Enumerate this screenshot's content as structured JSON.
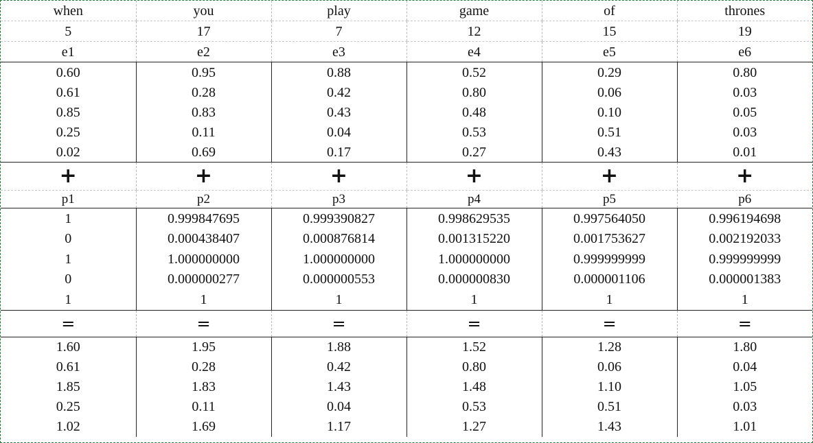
{
  "words": [
    "when",
    "you",
    "play",
    "game",
    "of",
    "thrones"
  ],
  "positions": [
    "5",
    "17",
    "7",
    "12",
    "15",
    "19"
  ],
  "embedding_labels": [
    "e1",
    "e2",
    "e3",
    "e4",
    "e5",
    "e6"
  ],
  "embeddings": [
    [
      "0.60",
      "0.95",
      "0.88",
      "0.52",
      "0.29",
      "0.80"
    ],
    [
      "0.61",
      "0.28",
      "0.42",
      "0.80",
      "0.06",
      "0.03"
    ],
    [
      "0.85",
      "0.83",
      "0.43",
      "0.48",
      "0.10",
      "0.05"
    ],
    [
      "0.25",
      "0.11",
      "0.04",
      "0.53",
      "0.51",
      "0.03"
    ],
    [
      "0.02",
      "0.69",
      "0.17",
      "0.27",
      "0.43",
      "0.01"
    ]
  ],
  "plus_symbol": "+",
  "position_labels": [
    "p1",
    "p2",
    "p3",
    "p4",
    "p5",
    "p6"
  ],
  "position_encodings": [
    [
      "1",
      "0.999847695",
      "0.999390827",
      "0.998629535",
      "0.997564050",
      "0.996194698"
    ],
    [
      "0",
      "0.000438407",
      "0.000876814",
      "0.001315220",
      "0.001753627",
      "0.002192033"
    ],
    [
      "1",
      "1.000000000",
      "1.000000000",
      "1.000000000",
      "0.999999999",
      "0.999999999"
    ],
    [
      "0",
      "0.000000277",
      "0.000000553",
      "0.000000830",
      "0.000001106",
      "0.000001383"
    ],
    [
      "1",
      "1",
      "1",
      "1",
      "1",
      "1"
    ]
  ],
  "equals_symbol": "=",
  "results": [
    [
      "1.60",
      "1.95",
      "1.88",
      "1.52",
      "1.28",
      "1.80"
    ],
    [
      "0.61",
      "0.28",
      "0.42",
      "0.80",
      "0.06",
      "0.04"
    ],
    [
      "1.85",
      "1.83",
      "1.43",
      "1.48",
      "1.10",
      "1.05"
    ],
    [
      "0.25",
      "0.11",
      "0.04",
      "0.53",
      "0.51",
      "0.03"
    ],
    [
      "1.02",
      "1.69",
      "1.17",
      "1.27",
      "1.43",
      "1.01"
    ]
  ],
  "colors": {
    "border_accent": "#1f7a3a",
    "grid_dashed": "#b8b8b8",
    "solid_line": "#222222"
  }
}
